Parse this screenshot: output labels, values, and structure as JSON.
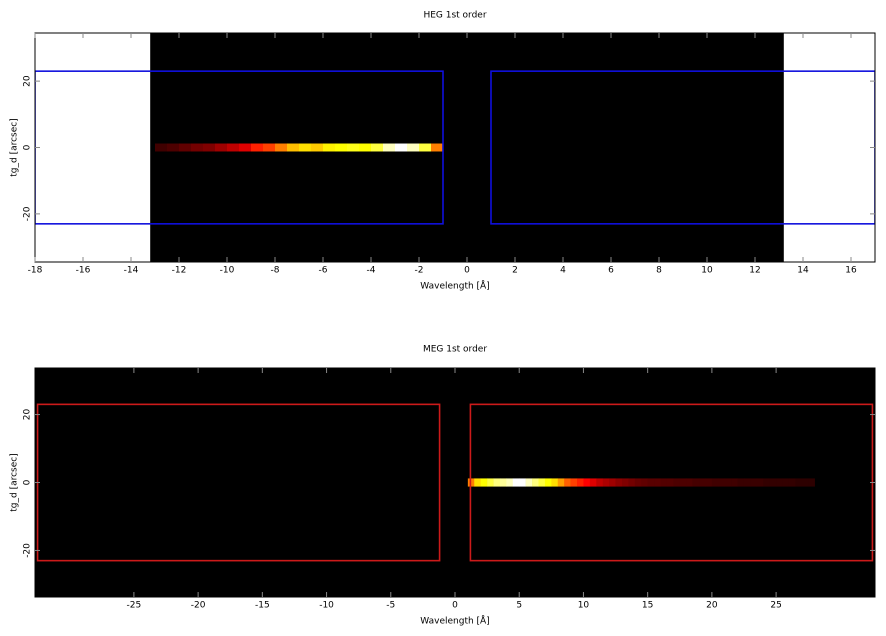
{
  "chart_data": [
    {
      "type": "heatmap",
      "title": "HEG 1st order",
      "xlabel": "Wavelength [Å]",
      "ylabel": "tg_d [arcsec]",
      "xlim": [
        -18,
        17
      ],
      "ylim": [
        -34.5,
        34.5
      ],
      "xticks": [
        -18,
        -16,
        -14,
        -12,
        -10,
        -8,
        -6,
        -4,
        -2,
        0,
        2,
        4,
        6,
        8,
        10,
        12,
        14,
        16
      ],
      "yticks": [
        -20,
        0,
        20
      ],
      "image_xlim": [
        -13.2,
        13.2
      ],
      "heatmap": {
        "y": 0,
        "dx": 0.5,
        "dy": 2.4,
        "x": [
          -12.75,
          -12.25,
          -11.75,
          -11.25,
          -10.75,
          -10.25,
          -9.75,
          -9.25,
          -8.75,
          -8.25,
          -7.75,
          -7.25,
          -6.75,
          -6.25,
          -5.75,
          -5.25,
          -4.75,
          -4.25,
          -3.75,
          -3.25,
          -2.75,
          -2.25,
          -1.75,
          -1.25
        ],
        "values": [
          0.1,
          0.12,
          0.15,
          0.18,
          0.2,
          0.25,
          0.3,
          0.35,
          0.45,
          0.5,
          0.6,
          0.7,
          0.75,
          0.72,
          0.78,
          0.8,
          0.82,
          0.8,
          0.85,
          0.95,
          1.0,
          0.95,
          0.85,
          0.6
        ]
      },
      "region_color": "#1010dd",
      "regions": [
        {
          "x": [
            -18,
            -1
          ],
          "y": [
            -23,
            23
          ]
        },
        {
          "x": [
            1,
            17
          ],
          "y": [
            -23,
            23
          ]
        }
      ]
    },
    {
      "type": "heatmap",
      "title": "MEG 1st order",
      "xlabel": "Wavelength [Å]",
      "ylabel": "tg_d [arcsec]",
      "xlim": [
        -32.7,
        32.7
      ],
      "ylim": [
        -33.7,
        33.7
      ],
      "xticks": [
        -25,
        -20,
        -15,
        -10,
        -5,
        0,
        5,
        10,
        15,
        20,
        25
      ],
      "yticks": [
        -20,
        0,
        20
      ],
      "image_xlim": [
        -32.7,
        32.7
      ],
      "heatmap": {
        "y": 0,
        "dx": 0.5,
        "dy": 2.4,
        "x": [
          1.25,
          1.75,
          2.25,
          2.75,
          3.25,
          3.75,
          4.25,
          4.75,
          5.25,
          5.75,
          6.25,
          6.75,
          7.25,
          7.75,
          8.25,
          8.75,
          9.25,
          9.75,
          10.25,
          10.75,
          11.25,
          11.75,
          12.25,
          12.75,
          13.25,
          13.75,
          14.25,
          14.75,
          15.25,
          15.75,
          16.25,
          16.75,
          17.25,
          17.75,
          18.25,
          18.75,
          19.25,
          19.75,
          20.25,
          20.75,
          21.25,
          21.75,
          22.25,
          22.75,
          23.25,
          23.75,
          24.25,
          24.75,
          25.25,
          25.75,
          26.25,
          26.75,
          27.25,
          27.75
        ],
        "values": [
          0.6,
          0.75,
          0.8,
          0.85,
          0.9,
          0.92,
          0.95,
          1.0,
          1.0,
          0.95,
          0.9,
          0.85,
          0.8,
          0.75,
          0.65,
          0.55,
          0.5,
          0.45,
          0.4,
          0.35,
          0.3,
          0.27,
          0.25,
          0.22,
          0.2,
          0.18,
          0.16,
          0.15,
          0.14,
          0.14,
          0.13,
          0.13,
          0.12,
          0.12,
          0.12,
          0.11,
          0.11,
          0.11,
          0.1,
          0.1,
          0.1,
          0.1,
          0.09,
          0.09,
          0.09,
          0.09,
          0.08,
          0.08,
          0.08,
          0.08,
          0.08,
          0.07,
          0.07,
          0.07
        ]
      },
      "region_color": "#cc1a1a",
      "regions": [
        {
          "x": [
            -32.5,
            -1.2
          ],
          "y": [
            -23,
            23
          ]
        },
        {
          "x": [
            1.2,
            32.5
          ],
          "y": [
            -23,
            23
          ]
        }
      ]
    }
  ]
}
